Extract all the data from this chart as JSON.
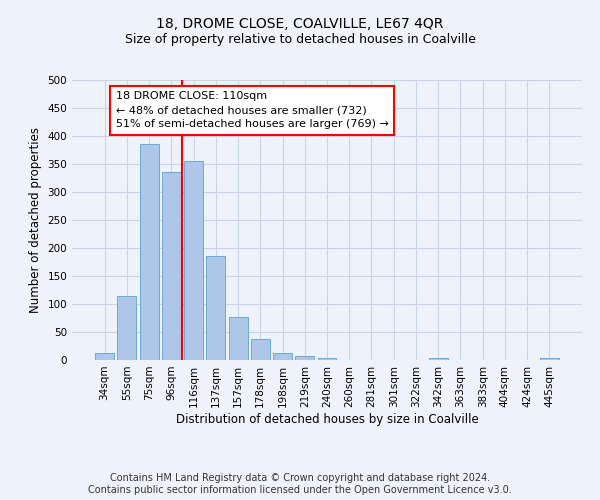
{
  "title": "18, DROME CLOSE, COALVILLE, LE67 4QR",
  "subtitle": "Size of property relative to detached houses in Coalville",
  "xlabel": "Distribution of detached houses by size in Coalville",
  "ylabel": "Number of detached properties",
  "footer_line1": "Contains HM Land Registry data © Crown copyright and database right 2024.",
  "footer_line2": "Contains public sector information licensed under the Open Government Licence v3.0.",
  "categories": [
    "34sqm",
    "55sqm",
    "75sqm",
    "96sqm",
    "116sqm",
    "137sqm",
    "157sqm",
    "178sqm",
    "198sqm",
    "219sqm",
    "240sqm",
    "260sqm",
    "281sqm",
    "301sqm",
    "322sqm",
    "342sqm",
    "363sqm",
    "383sqm",
    "404sqm",
    "424sqm",
    "445sqm"
  ],
  "values": [
    12,
    115,
    385,
    335,
    355,
    185,
    76,
    38,
    12,
    7,
    3,
    0,
    0,
    0,
    0,
    4,
    0,
    0,
    0,
    0,
    4
  ],
  "bar_color": "#aec6e8",
  "bar_edge_color": "#6aaad4",
  "vline_x_index": 4,
  "vline_color": "red",
  "annotation_text": "18 DROME CLOSE: 110sqm\n← 48% of detached houses are smaller (732)\n51% of semi-detached houses are larger (769) →",
  "annotation_box_color": "white",
  "annotation_box_edge_color": "red",
  "ylim": [
    0,
    500
  ],
  "yticks": [
    0,
    50,
    100,
    150,
    200,
    250,
    300,
    350,
    400,
    450,
    500
  ],
  "grid_color": "#c8d4e8",
  "background_color": "#eef2fa",
  "title_fontsize": 10,
  "subtitle_fontsize": 9,
  "axis_label_fontsize": 8.5,
  "tick_fontsize": 7.5,
  "footer_fontsize": 7,
  "annotation_fontsize": 8
}
